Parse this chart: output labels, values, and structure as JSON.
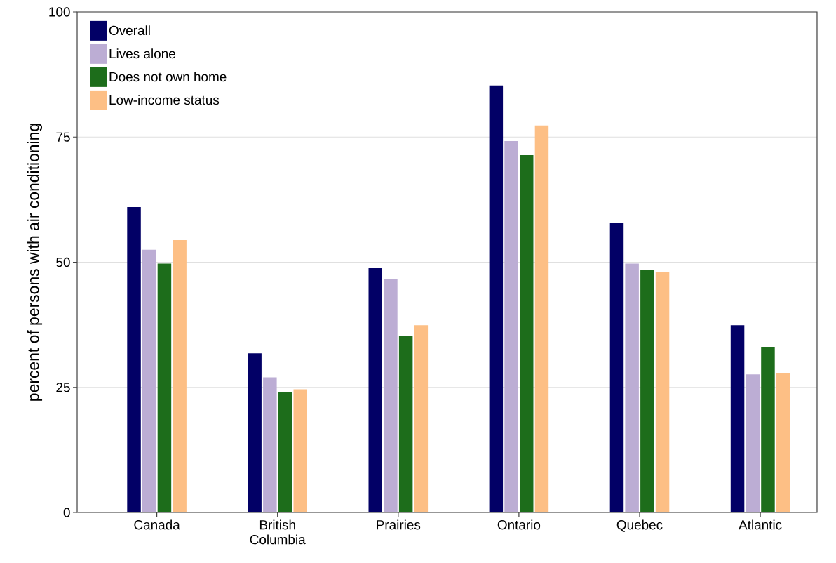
{
  "chart_data": {
    "type": "bar",
    "ylabel": "percent of persons with air conditioning",
    "categories": [
      "Canada",
      "British Columbia",
      "Prairies",
      "Ontario",
      "Quebec",
      "Atlantic"
    ],
    "series": [
      {
        "name": "Overall",
        "color": "#020066",
        "values": [
          61.0,
          31.8,
          48.8,
          85.3,
          57.8,
          37.4
        ]
      },
      {
        "name": "Lives alone",
        "color": "#bcadd4",
        "values": [
          52.5,
          27.0,
          46.6,
          74.2,
          49.7,
          27.6
        ]
      },
      {
        "name": "Does not own home",
        "color": "#1d6d1b",
        "values": [
          49.7,
          24.0,
          35.3,
          71.4,
          48.5,
          33.1
        ]
      },
      {
        "name": "Low-income status",
        "color": "#fdbf85",
        "values": [
          54.4,
          24.6,
          37.4,
          77.3,
          48.0,
          27.9
        ]
      }
    ],
    "ylim": [
      0,
      100
    ],
    "yticks": [
      0,
      25,
      50,
      75,
      100
    ],
    "grid": "y",
    "legend": "top left"
  }
}
